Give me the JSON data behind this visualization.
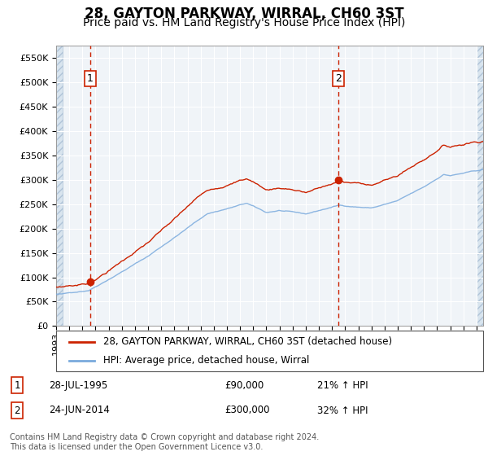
{
  "title": "28, GAYTON PARKWAY, WIRRAL, CH60 3ST",
  "subtitle": "Price paid vs. HM Land Registry's House Price Index (HPI)",
  "ylim": [
    0,
    575000
  ],
  "xlim_start": 1993.0,
  "xlim_end": 2025.5,
  "chart_bg": "#f0f4f8",
  "grid_color": "#ffffff",
  "hatch_bg": "#d8e4ee",
  "sale1_date": 1995.58,
  "sale1_price": 90000,
  "sale2_date": 2014.48,
  "sale2_price": 300000,
  "legend_line1": "28, GAYTON PARKWAY, WIRRAL, CH60 3ST (detached house)",
  "legend_line2": "HPI: Average price, detached house, Wirral",
  "footer": "Contains HM Land Registry data © Crown copyright and database right 2024.\nThis data is licensed under the Open Government Licence v3.0.",
  "sale_color": "#cc2200",
  "hpi_color": "#7aaadd",
  "ytick_labels": [
    "£0",
    "£50K",
    "£100K",
    "£150K",
    "£200K",
    "£250K",
    "£300K",
    "£350K",
    "£400K",
    "£450K",
    "£500K",
    "£550K"
  ],
  "ytick_values": [
    0,
    50000,
    100000,
    150000,
    200000,
    250000,
    300000,
    350000,
    400000,
    450000,
    500000,
    550000
  ],
  "title_fontsize": 12,
  "subtitle_fontsize": 10,
  "tick_fontsize": 8,
  "legend_fontsize": 8.5,
  "annot_fontsize": 8.5,
  "footer_fontsize": 7
}
